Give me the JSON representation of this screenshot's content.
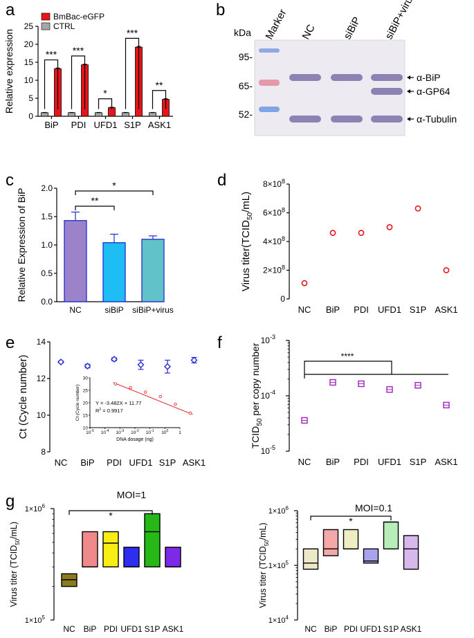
{
  "panel_labels": {
    "a": "a",
    "b": "b",
    "c": "c",
    "d": "d",
    "e": "e",
    "f": "f",
    "g": "g"
  },
  "chart_data": [
    {
      "id": "a",
      "type": "bar",
      "categories": [
        "BiP",
        "PDI",
        "UFD1",
        "S1P",
        "ASK1"
      ],
      "series": [
        {
          "name": "CTRL",
          "color": "#a6a6a6",
          "values": [
            1,
            1,
            1,
            1,
            1
          ],
          "errors": [
            0.05,
            0.05,
            0.05,
            0.05,
            0.05
          ]
        },
        {
          "name": "BmBac-eGFP",
          "color": "#e8141b",
          "values": [
            13.2,
            14.3,
            2.4,
            19.2,
            4.7
          ],
          "errors": [
            0.2,
            0.15,
            0.1,
            0.2,
            0.15
          ]
        }
      ],
      "ylabel": "Relative expression",
      "ylim": [
        0,
        25
      ],
      "yticks": [
        0,
        5,
        10,
        15,
        20,
        25
      ],
      "sig": [
        "***",
        "***",
        "*",
        "***",
        "**"
      ],
      "legend": "top-left"
    },
    {
      "id": "b",
      "type": "blot",
      "kda_label": "kDa",
      "lanes": [
        "Marker",
        "NC",
        "siBiP",
        "siBiP+virus"
      ],
      "markers": [
        "95-",
        "65-",
        "52-"
      ],
      "bands": [
        "α-BiP",
        "α-GP64",
        "α-Tubulin"
      ]
    },
    {
      "id": "c",
      "type": "bar",
      "categories": [
        "NC",
        "siBiP",
        "siBiP+virus"
      ],
      "values": [
        1.43,
        1.04,
        1.1
      ],
      "errors": [
        0.15,
        0.15,
        0.06
      ],
      "colors": [
        "#9b82c9",
        "#1ebdf3",
        "#62c2ca"
      ],
      "ylabel": "Relative Expression of BiP",
      "ylim": [
        0,
        2.0
      ],
      "yticks": [
        "0.0",
        "0.5",
        "1.0",
        "1.5",
        "2.0"
      ],
      "yticks_values": [
        0,
        0.5,
        1.0,
        1.5,
        2.0
      ],
      "brackets": [
        {
          "from": 0,
          "to": 2,
          "label": "*"
        },
        {
          "from": 0,
          "to": 1,
          "label": "**"
        }
      ]
    },
    {
      "id": "d",
      "type": "scatter",
      "categories": [
        "NC",
        "BiP",
        "PDI",
        "UFD1",
        "S1P",
        "ASK1"
      ],
      "values": [
        110000000,
        460000000,
        460000000,
        500000000,
        630000000,
        200000000
      ],
      "marker_color": "#e8141b",
      "ylabel": "Virus titer(TCID",
      "ylabel_sub": "50",
      "ylabel_end": "/mL)",
      "ylim": [
        0,
        800000000
      ],
      "yticks": [
        "0",
        "2×10",
        "4×10",
        "6×10",
        "8×10"
      ],
      "yticks_sup": "8",
      "yticks_values": [
        0,
        200000000,
        400000000,
        600000000,
        800000000
      ]
    },
    {
      "id": "e",
      "type": "scatter",
      "categories": [
        "NC",
        "BiP",
        "PDI",
        "UFD1",
        "S1P",
        "ASK1"
      ],
      "values": [
        12.9,
        12.68,
        13.05,
        12.75,
        12.65,
        13.0
      ],
      "errors": [
        0.05,
        0.1,
        0.08,
        0.25,
        0.35,
        0.15
      ],
      "marker_color": "#2a2ad0",
      "ylabel": "Ct (Cycle number)",
      "ylim": [
        8,
        14
      ],
      "yticks": [
        "8",
        "10",
        "12",
        "14"
      ],
      "yticks_values": [
        8,
        10,
        12,
        14
      ],
      "inset": {
        "type": "line",
        "x_log10": [
          -3.3,
          -2.3,
          -1.3,
          -0.3,
          0.7,
          1.7
        ],
        "y": [
          27.6,
          26.1,
          24.3,
          22.5,
          19.4,
          15.8
        ],
        "fit": {
          "slope": -3.482,
          "intercept": 11.77
        },
        "color": "#e8141b",
        "xlabel": "DNA dosage (ng)",
        "ylabel": "Ct (Cycle number)",
        "xlim_log10": [
          -5,
          1
        ],
        "xticks_exp": [
          "-5",
          "-4",
          "-3",
          "-2",
          "-1",
          "0"
        ],
        "xticks_base": "10",
        "last_tick": "1",
        "ylim": [
          10,
          30
        ],
        "yticks": [
          "10",
          "15",
          "20",
          "25",
          "30"
        ],
        "yticks_values": [
          10,
          15,
          20,
          25,
          30
        ],
        "equation": "Y = -3.482X + 11.77",
        "r2_prefix": "R",
        "r2_sup": "2",
        "r2_value": " = 0.9917"
      }
    },
    {
      "id": "f",
      "type": "scatter",
      "y_scale": "log",
      "categories": [
        "NC",
        "BiP",
        "PDI",
        "UFD1",
        "S1P",
        "ASK1"
      ],
      "values": [
        3.6e-05,
        0.000175,
        0.000165,
        0.00013,
        0.000155,
        6.8e-05
      ],
      "marker_color": "#a020c0",
      "ylabel_pre": "TCID",
      "ylabel_sub": "50",
      "ylabel_end": " per copy number",
      "ylim_log10": [
        -5,
        -3
      ],
      "ytick_base": "10",
      "yticks_exp": [
        "-5",
        "-4",
        "-3"
      ],
      "sig": "****"
    },
    {
      "id": "g1",
      "type": "floating-bar",
      "y_scale": "log",
      "title": "MOI=1",
      "categories": [
        "NC",
        "BiP",
        "PDI",
        "UFD1",
        "S1P",
        "ASK1"
      ],
      "low": [
        200000,
        300000,
        300000,
        300000,
        300000,
        300000
      ],
      "high": [
        260000,
        620000,
        620000,
        450000,
        900000,
        450000
      ],
      "line": [
        230000,
        300000,
        490000,
        300000,
        620000,
        300000
      ],
      "colors": [
        "#8c7a1d",
        "#f08a8a",
        "#f8ee14",
        "#2e2ef0",
        "#26b817",
        "#7d2ae8"
      ],
      "ylabel_pre": "Virus titer (TCID",
      "ylabel_sub": "50",
      "ylabel_end": "/mL)",
      "ylim_log10": [
        5,
        6
      ],
      "yticks_prefix": "1×10",
      "yticks_exp": [
        "5",
        "6"
      ],
      "sig": "*"
    },
    {
      "id": "g2",
      "type": "floating-bar",
      "y_scale": "log",
      "title": "MOI=0.1",
      "categories": [
        "NC",
        "BiP",
        "PDI",
        "UFD1",
        "S1P",
        "ASK1"
      ],
      "low": [
        85000,
        150000,
        200000,
        110000,
        200000,
        85000
      ],
      "high": [
        200000,
        450000,
        450000,
        200000,
        620000,
        350000
      ],
      "line": [
        110000,
        200000,
        200000,
        120000,
        620000,
        200000
      ],
      "colors": [
        "#ede8c8",
        "#f4a9a9",
        "#eeeec2",
        "#a8a4ec",
        "#b8ecb8",
        "#d7b8ec"
      ],
      "ylabel_pre": "Virus titer (TCID",
      "ylabel_sub": "50",
      "ylabel_end": "/mL)",
      "ylim_log10": [
        4,
        6
      ],
      "yticks_prefix": "1×10",
      "yticks_exp": [
        "4",
        "5",
        "6"
      ],
      "sig": "*"
    }
  ]
}
